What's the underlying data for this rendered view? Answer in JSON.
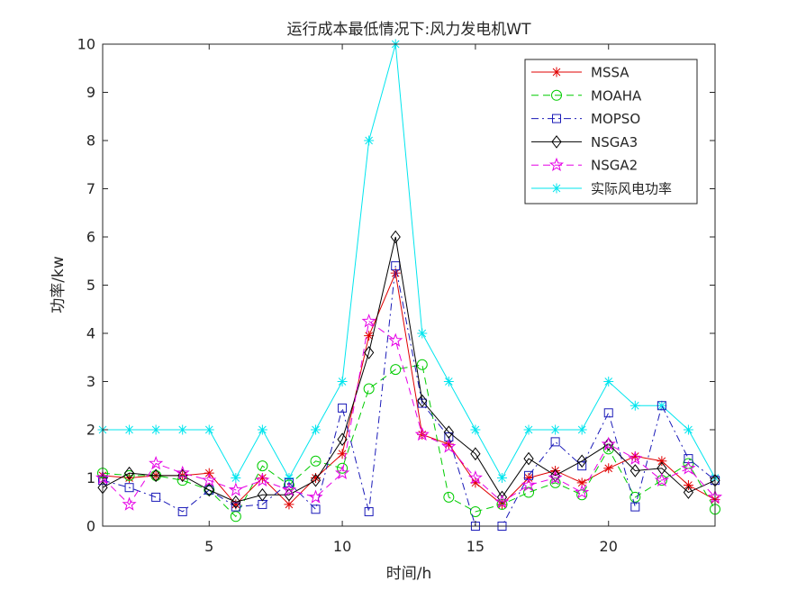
{
  "chart_data": {
    "type": "line",
    "title": "运行成本最低情况下:风力发电机WT",
    "xlabel": "时间/h",
    "ylabel": "功率/kw",
    "xlim": [
      1,
      24
    ],
    "ylim": [
      0,
      10
    ],
    "xticks": [
      5,
      10,
      15,
      20
    ],
    "yticks": [
      0,
      1,
      2,
      3,
      4,
      5,
      6,
      7,
      8,
      9,
      10
    ],
    "grid": false,
    "legend_position": "top-right",
    "x": [
      1,
      2,
      3,
      4,
      5,
      6,
      7,
      8,
      9,
      10,
      11,
      12,
      13,
      14,
      15,
      16,
      17,
      18,
      19,
      20,
      21,
      22,
      23,
      24
    ],
    "series": [
      {
        "name": "MSSA",
        "color": "#e00000",
        "dash": "solid",
        "marker": "asterisk",
        "values": [
          1.05,
          1.0,
          1.05,
          1.05,
          1.1,
          0.45,
          1.0,
          0.45,
          1.0,
          1.5,
          3.95,
          5.25,
          1.9,
          1.7,
          0.9,
          0.45,
          1.0,
          1.15,
          0.9,
          1.2,
          1.45,
          1.35,
          0.85,
          0.55
        ]
      },
      {
        "name": "MOAHA",
        "color": "#00cc00",
        "dash": "dashed",
        "marker": "circle",
        "values": [
          1.1,
          1.05,
          1.05,
          0.95,
          0.75,
          0.2,
          1.25,
          0.85,
          1.35,
          1.2,
          2.85,
          3.25,
          3.35,
          0.6,
          0.3,
          0.45,
          0.7,
          0.9,
          0.65,
          1.6,
          0.6,
          0.95,
          1.3,
          0.35
        ]
      },
      {
        "name": "MOPSO",
        "color": "#1a1ab8",
        "dash": "dashdot",
        "marker": "square",
        "values": [
          0.95,
          0.8,
          0.6,
          0.3,
          0.75,
          0.4,
          0.45,
          0.9,
          0.35,
          2.45,
          0.3,
          5.4,
          2.55,
          1.85,
          0.0,
          0.0,
          1.05,
          1.75,
          1.25,
          2.35,
          0.4,
          2.5,
          1.4,
          0.95
        ]
      },
      {
        "name": "NSGA3",
        "color": "#000000",
        "dash": "solid",
        "marker": "diamond",
        "values": [
          0.8,
          1.1,
          1.05,
          1.05,
          0.75,
          0.5,
          0.65,
          0.65,
          0.95,
          1.8,
          3.6,
          6.0,
          2.6,
          1.95,
          1.5,
          0.6,
          1.4,
          1.05,
          1.35,
          1.7,
          1.15,
          1.2,
          0.7,
          0.95
        ]
      },
      {
        "name": "NSGA2",
        "color": "#e600e6",
        "dash": "dashed",
        "marker": "star",
        "values": [
          1.0,
          0.45,
          1.3,
          1.1,
          0.95,
          0.75,
          0.95,
          0.75,
          0.6,
          1.1,
          4.25,
          3.85,
          1.9,
          1.65,
          1.0,
          0.5,
          0.85,
          1.0,
          0.7,
          1.7,
          1.4,
          0.95,
          1.2,
          0.6
        ]
      },
      {
        "name": "实际风电功率",
        "color": "#00e5ee",
        "dash": "solid",
        "marker": "asterisk",
        "values": [
          2,
          2,
          2,
          2,
          2,
          1,
          2,
          1,
          2,
          3,
          8,
          10,
          4,
          3,
          2,
          1,
          2,
          2,
          2,
          3,
          2.5,
          2.5,
          2,
          1
        ]
      }
    ]
  }
}
